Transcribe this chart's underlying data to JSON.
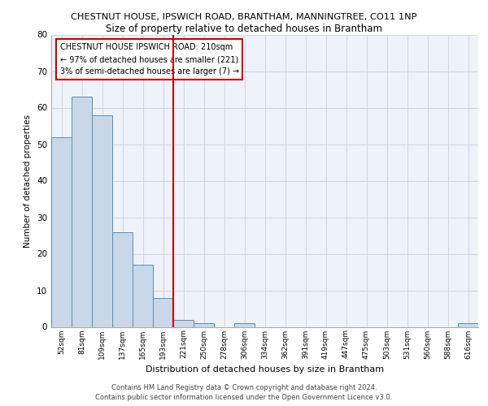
{
  "title": "CHESTNUT HOUSE, IPSWICH ROAD, BRANTHAM, MANNINGTREE, CO11 1NP",
  "subtitle": "Size of property relative to detached houses in Brantham",
  "xlabel": "Distribution of detached houses by size in Brantham",
  "ylabel": "Number of detached properties",
  "categories": [
    "52sqm",
    "81sqm",
    "109sqm",
    "137sqm",
    "165sqm",
    "193sqm",
    "221sqm",
    "250sqm",
    "278sqm",
    "306sqm",
    "334sqm",
    "362sqm",
    "391sqm",
    "419sqm",
    "447sqm",
    "475sqm",
    "503sqm",
    "531sqm",
    "560sqm",
    "588sqm",
    "616sqm"
  ],
  "values": [
    52,
    63,
    58,
    26,
    17,
    8,
    2,
    1,
    0,
    1,
    0,
    0,
    0,
    0,
    0,
    0,
    0,
    0,
    0,
    0,
    1
  ],
  "bar_color": "#c8d8e8",
  "bar_edge_color": "#5b8db8",
  "grid_color": "#d0d8e8",
  "background_color": "#eef2fa",
  "vline_x": 5.5,
  "vline_color": "#cc0000",
  "annotation_box_text": "CHESTNUT HOUSE IPSWICH ROAD: 210sqm\n← 97% of detached houses are smaller (221)\n3% of semi-detached houses are larger (7) →",
  "footer_line1": "Contains HM Land Registry data © Crown copyright and database right 2024.",
  "footer_line2": "Contains public sector information licensed under the Open Government Licence v3.0.",
  "ylim": [
    0,
    80
  ],
  "yticks": [
    0,
    10,
    20,
    30,
    40,
    50,
    60,
    70,
    80
  ]
}
